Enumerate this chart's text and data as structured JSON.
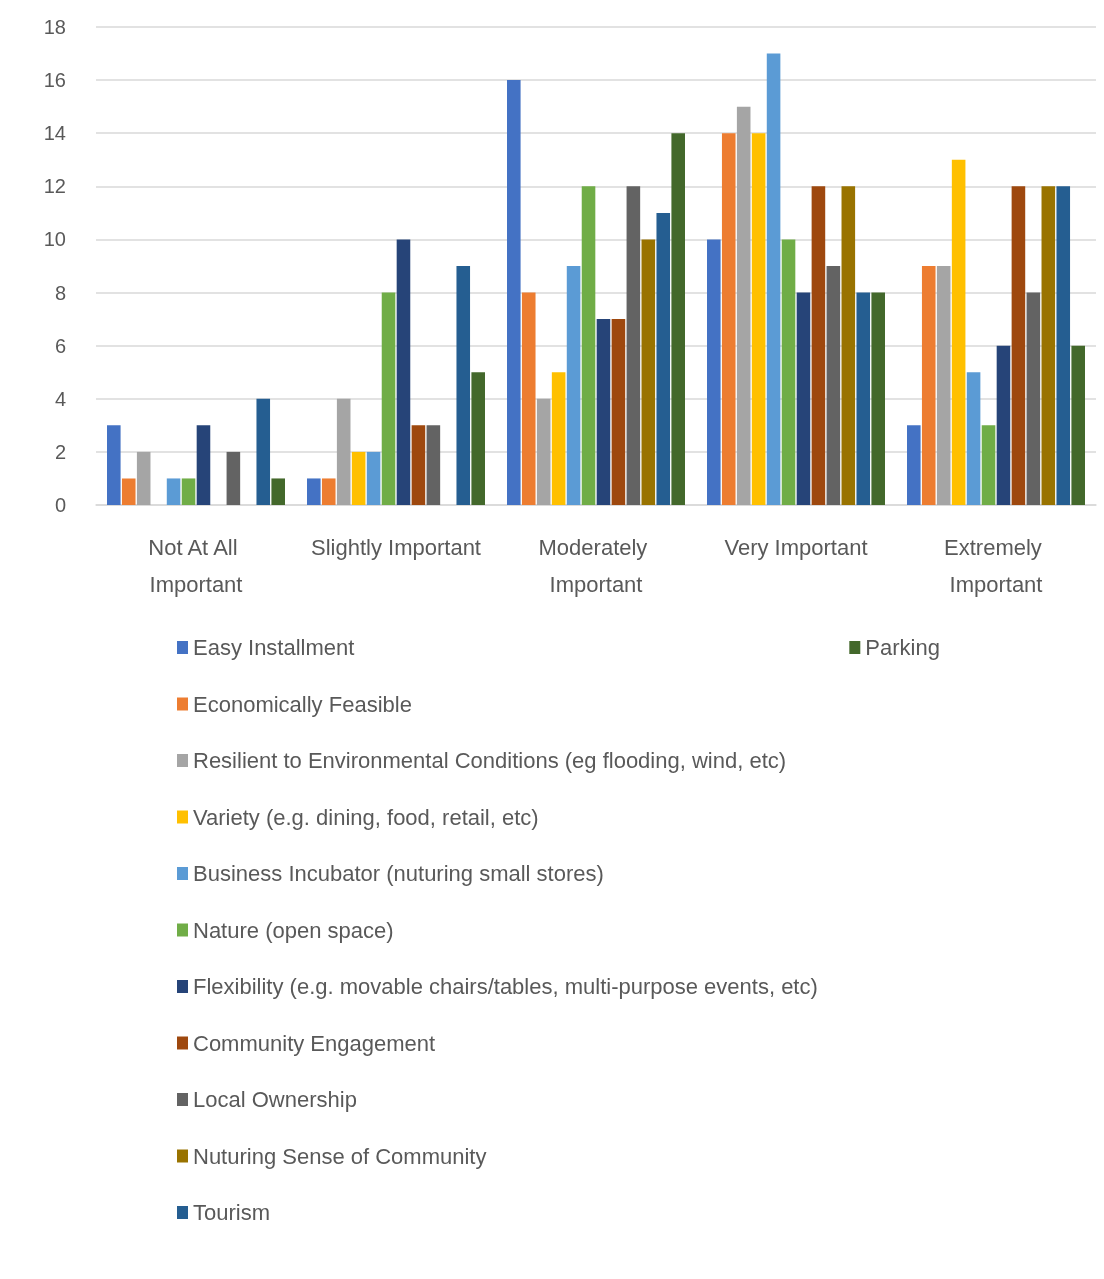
{
  "chart_data": {
    "type": "bar",
    "categories": [
      "Not At All Important",
      "Slightly Important",
      "Moderately Important",
      "Very Important",
      "Extremely Important"
    ],
    "series": [
      {
        "name": "Easy Installment",
        "color": "#4472c4",
        "values": [
          3,
          1,
          16,
          10,
          3
        ]
      },
      {
        "name": "Economically Feasible",
        "color": "#ed7d31",
        "values": [
          1,
          1,
          8,
          14,
          9
        ]
      },
      {
        "name": "Resilient to Environmental Conditions (eg flooding, wind, etc)",
        "color": "#a5a5a5",
        "values": [
          2,
          4,
          4,
          15,
          9
        ]
      },
      {
        "name": "Variety (e.g. dining, food, retail, etc)",
        "color": "#ffc000",
        "values": [
          0,
          2,
          5,
          14,
          13
        ]
      },
      {
        "name": "Business Incubator (nuturing small stores)",
        "color": "#5b9bd5",
        "values": [
          1,
          2,
          9,
          17,
          5
        ]
      },
      {
        "name": "Nature (open space)",
        "color": "#70ad47",
        "values": [
          1,
          8,
          12,
          10,
          3
        ]
      },
      {
        "name": "Flexibility (e.g. movable chairs/tables, multi-purpose events, etc)",
        "color": "#264478",
        "values": [
          3,
          10,
          7,
          8,
          6
        ]
      },
      {
        "name": "Community Engagement",
        "color": "#9e480e",
        "values": [
          0,
          3,
          7,
          12,
          12
        ]
      },
      {
        "name": "Local Ownership",
        "color": "#636363",
        "values": [
          2,
          3,
          12,
          9,
          8
        ]
      },
      {
        "name": "Nuturing Sense of Community",
        "color": "#997300",
        "values": [
          0,
          0,
          10,
          12,
          12
        ]
      },
      {
        "name": "Tourism",
        "color": "#255e91",
        "values": [
          4,
          9,
          11,
          8,
          12
        ]
      },
      {
        "name": "Parking",
        "color": "#43682b",
        "values": [
          1,
          5,
          14,
          8,
          6
        ]
      }
    ],
    "ylim": [
      0,
      18
    ],
    "yticks": [
      0,
      2,
      4,
      6,
      8,
      10,
      12,
      14,
      16,
      18
    ],
    "grid": "y",
    "legend": "bottom"
  }
}
